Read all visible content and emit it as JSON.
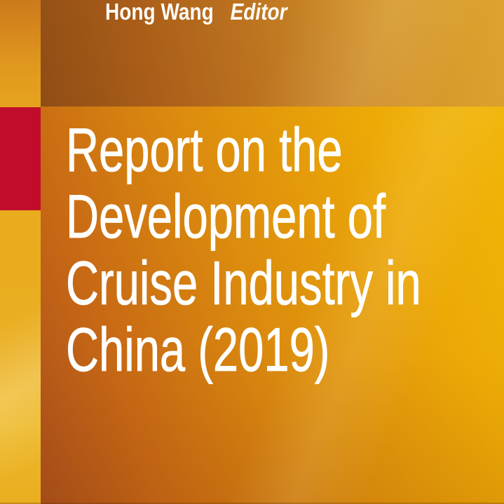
{
  "book_cover": {
    "byline": {
      "editor_name": "Hong Wang",
      "editor_role": "Editor"
    },
    "title": {
      "lines": [
        "Report on the",
        "Development of",
        "Cruise Industry in",
        "China (2019)"
      ],
      "full": "Report on the Development of Cruise Industry in China (2019)"
    },
    "colors": {
      "accent_red": "#C10D2B",
      "spine_gold": "#E9AC1F",
      "band_dark_orange": "#8F4D15",
      "band_light_amber": "#DCA42E",
      "panel_dark_orange": "#A84E1C",
      "panel_bright_gold": "#F1B507",
      "title_text": "#FFFFFF",
      "byline_text": "#FDFBF7"
    }
  }
}
